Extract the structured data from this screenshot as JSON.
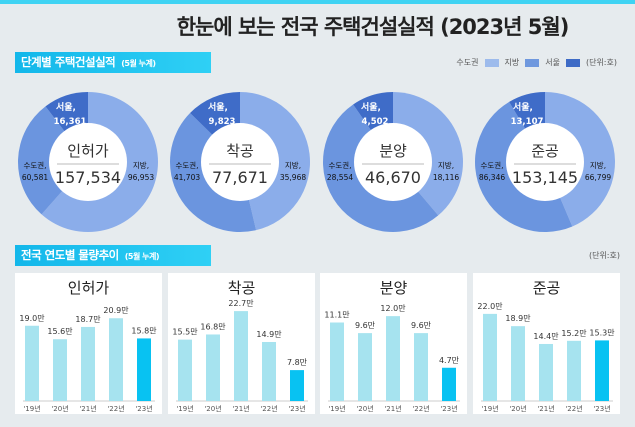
{
  "title": "한눈에 보는 전국 주택건설실적  (2023년 5월)",
  "section1": {
    "title": "단계별 주택건설실적",
    "sub": "(5월 누계)"
  },
  "legend": {
    "items": [
      {
        "label": "수도권",
        "color": "#9dbbec"
      },
      {
        "label": "지방",
        "color": "#6f98de"
      },
      {
        "label": "서울",
        "color": "#3e6bc6"
      }
    ],
    "unit": "(단위:호)"
  },
  "colors": {
    "jibang": "#8badea",
    "sudo": "#6b95df",
    "seoul": "#3f6cc8",
    "bar": "#a6e3ef",
    "bar_highlight": "#08c2f2"
  },
  "donuts": [
    {
      "name": "인허가",
      "total": "157,534",
      "seoul_label": "서울,",
      "seoul": 16361,
      "seoul_text": "16,361",
      "sudo_label": "수도권,",
      "sudo": 60581,
      "sudo_text": "60,581",
      "jibang_label": "지방,",
      "jibang": 96953,
      "jibang_text": "96,953"
    },
    {
      "name": "착공",
      "total": "77,671",
      "seoul_label": "서울,",
      "seoul": 9823,
      "seoul_text": "9,823",
      "sudo_label": "수도권,",
      "sudo": 41703,
      "sudo_text": "41,703",
      "jibang_label": "지방,",
      "jibang": 35968,
      "jibang_text": "35,968"
    },
    {
      "name": "분양",
      "total": "46,670",
      "seoul_label": "서울,",
      "seoul": 4502,
      "seoul_text": "4,502",
      "sudo_label": "수도권,",
      "sudo": 28554,
      "sudo_text": "28,554",
      "jibang_label": "지방,",
      "jibang": 18116,
      "jibang_text": "18,116"
    },
    {
      "name": "준공",
      "total": "153,145",
      "seoul_label": "서울,",
      "seoul": 13107,
      "seoul_text": "13,107",
      "sudo_label": "수도권,",
      "sudo": 86346,
      "sudo_text": "86,346",
      "jibang_label": "지방,",
      "jibang": 66799,
      "jibang_text": "66,799"
    }
  ],
  "section2": {
    "title": "전국 연도별 물량추이",
    "sub": "(5월 누계)",
    "unit": "(단위:호)"
  },
  "chart_data": [
    {
      "type": "bar",
      "title": "인허가",
      "categories": [
        "'19년",
        "'20년",
        "'21년",
        "'22년",
        "'23년"
      ],
      "values": [
        19.0,
        15.6,
        18.7,
        20.9,
        15.8
      ],
      "labels": [
        "19.0만",
        "15.6만",
        "18.7만",
        "20.9만",
        "15.8만"
      ],
      "ylim": [
        0,
        25
      ],
      "highlight": "'23년"
    },
    {
      "type": "bar",
      "title": "착공",
      "categories": [
        "'19년",
        "'20년",
        "'21년",
        "'22년",
        "'23년"
      ],
      "values": [
        15.5,
        16.8,
        22.7,
        14.9,
        7.8
      ],
      "labels": [
        "15.5만",
        "16.8만",
        "22.7만",
        "14.9만",
        "7.8만"
      ],
      "ylim": [
        0,
        25
      ],
      "highlight": "'23년"
    },
    {
      "type": "bar",
      "title": "분양",
      "categories": [
        "'19년",
        "'20년",
        "'21년",
        "'22년",
        "'23년"
      ],
      "values": [
        11.1,
        9.6,
        12.0,
        9.6,
        4.7
      ],
      "labels": [
        "11.1만",
        "9.6만",
        "12.0만",
        "9.6만",
        "4.7만"
      ],
      "ylim": [
        0,
        14
      ],
      "highlight": "'23년"
    },
    {
      "type": "bar",
      "title": "준공",
      "categories": [
        "'19년",
        "'20년",
        "'21년",
        "'22년",
        "'23년"
      ],
      "values": [
        22.0,
        18.9,
        14.4,
        15.2,
        15.3
      ],
      "labels": [
        "22.0만",
        "18.9만",
        "14.4만",
        "15.2만",
        "15.3만"
      ],
      "ylim": [
        0,
        25
      ],
      "highlight": "'23년"
    }
  ]
}
